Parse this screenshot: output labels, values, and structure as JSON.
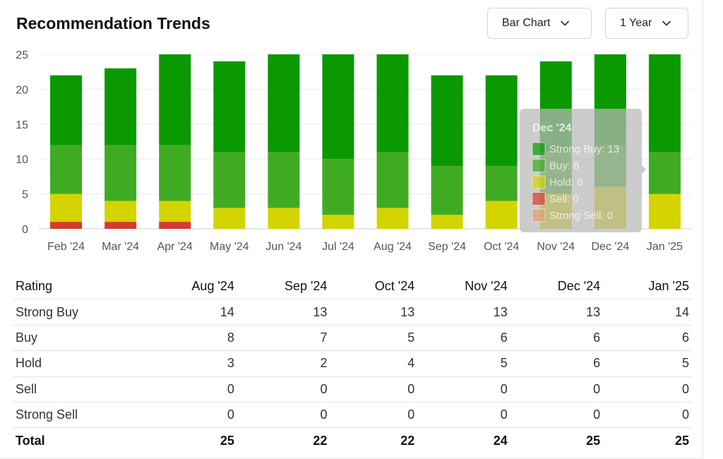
{
  "header": {
    "title": "Recommendation Trends",
    "chart_type_label": "Bar Chart",
    "range_label": "1 Year"
  },
  "chart_data": {
    "type": "bar",
    "stacked": true,
    "categories": [
      "Feb '24",
      "Mar '24",
      "Apr '24",
      "May '24",
      "Jun '24",
      "Jul '24",
      "Aug '24",
      "Sep '24",
      "Oct '24",
      "Nov '24",
      "Dec '24",
      "Jan '25"
    ],
    "series": [
      {
        "name": "Strong Sell",
        "color": "#e2a06e",
        "values": [
          0,
          0,
          0,
          0,
          0,
          0,
          0,
          0,
          0,
          0,
          0,
          0
        ]
      },
      {
        "name": "Sell",
        "color": "#d63b2e",
        "values": [
          1,
          1,
          1,
          0,
          0,
          0,
          0,
          0,
          0,
          0,
          0,
          0
        ]
      },
      {
        "name": "Hold",
        "color": "#d4d400",
        "values": [
          4,
          3,
          3,
          3,
          3,
          2,
          3,
          2,
          4,
          5,
          6,
          5
        ]
      },
      {
        "name": "Buy",
        "color": "#3fab22",
        "values": [
          7,
          8,
          8,
          8,
          8,
          8,
          8,
          7,
          5,
          6,
          6,
          6
        ]
      },
      {
        "name": "Strong Buy",
        "color": "#0a9900",
        "values": [
          10,
          11,
          13,
          13,
          14,
          15,
          14,
          13,
          13,
          13,
          13,
          14
        ]
      }
    ],
    "ylim": [
      0,
      25
    ],
    "yticks": [
      "0",
      "5",
      "10",
      "15",
      "20",
      "25"
    ],
    "grid": true,
    "tooltip": {
      "title": "Dec '24",
      "items": [
        "Strong Buy: 13",
        "Buy: 6",
        "Hold: 6",
        "Sell: 0",
        "Strong Sell: 0"
      ],
      "colors": [
        "#0a9900",
        "#3fab22",
        "#d4d400",
        "#d63b2e",
        "#e2a06e"
      ],
      "category_index": 10
    }
  },
  "table": {
    "headers": [
      "Rating",
      "Aug '24",
      "Sep '24",
      "Oct '24",
      "Nov '24",
      "Dec '24",
      "Jan '25"
    ],
    "rows": [
      {
        "label": "Strong Buy",
        "values": [
          "14",
          "13",
          "13",
          "13",
          "13",
          "14"
        ]
      },
      {
        "label": "Buy",
        "values": [
          "8",
          "7",
          "5",
          "6",
          "6",
          "6"
        ]
      },
      {
        "label": "Hold",
        "values": [
          "3",
          "2",
          "4",
          "5",
          "6",
          "5"
        ]
      },
      {
        "label": "Sell",
        "values": [
          "0",
          "0",
          "0",
          "0",
          "0",
          "0"
        ]
      },
      {
        "label": "Strong Sell",
        "values": [
          "0",
          "0",
          "0",
          "0",
          "0",
          "0"
        ]
      }
    ],
    "total": {
      "label": "Total",
      "values": [
        "25",
        "22",
        "22",
        "24",
        "25",
        "25"
      ]
    }
  }
}
